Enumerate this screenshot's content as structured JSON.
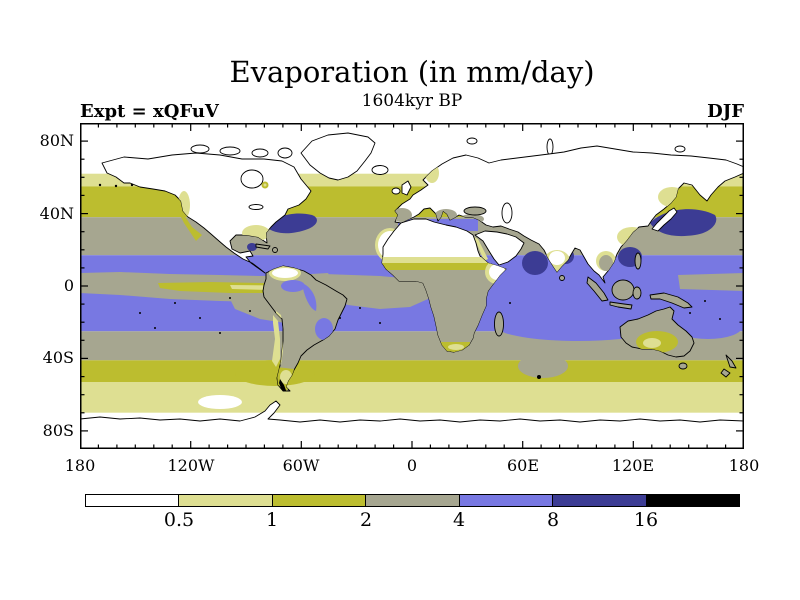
{
  "header": {
    "title": "Evaporation (in mm/day)",
    "subtitle": "1604kyr BP",
    "experiment_label": "Expt = xQFuV",
    "season": "DJF"
  },
  "chart_data": {
    "type": "heatmap",
    "title": "Evaporation (in mm/day)",
    "subtitle": "1604kyr BP",
    "experiment": "xQFuV",
    "season": "DJF",
    "units": "mm/day",
    "projection": "global equirectangular map, filled contours",
    "x_axis": {
      "tick_labels": [
        "180",
        "120W",
        "60W",
        "0",
        "60E",
        "120E",
        "180"
      ],
      "range_deg": [
        -180,
        180
      ],
      "major_tick_deg": 60,
      "minor_tick_deg": 10
    },
    "y_axis": {
      "tick_labels": [
        "80N",
        "40N",
        "0",
        "40S",
        "80S"
      ],
      "range_deg": [
        -90,
        90
      ],
      "major_tick_deg": 40,
      "minor_tick_deg": 10
    },
    "colorbar": {
      "boundary_labels": [
        "0.5",
        "1",
        "2",
        "4",
        "8",
        "16"
      ],
      "bins": [
        "<0.5",
        "0.5-1",
        "1-2",
        "2-4",
        "4-8",
        "8-16",
        ">16"
      ],
      "palette": [
        "#ffffff",
        "#dedf92",
        "#bcbd2f",
        "#a6a690",
        "#7878e2",
        "#3c3c94",
        "#000000"
      ]
    },
    "zonal_bands": [
      {
        "from": 90,
        "to": 62,
        "level": 0
      },
      {
        "from": 62,
        "to": 55,
        "level": 1
      },
      {
        "from": 55,
        "to": 38,
        "level": 2
      },
      {
        "from": 38,
        "to": 17,
        "level": 3
      },
      {
        "from": 17,
        "to": -25,
        "level": 4
      },
      {
        "from": -25,
        "to": -41,
        "level": 3
      },
      {
        "from": -41,
        "to": -53,
        "level": 2
      },
      {
        "from": -53,
        "to": -70,
        "level": 1
      },
      {
        "from": -70,
        "to": -90,
        "level": 0
      }
    ],
    "features": [
      {
        "region": "Gulf Stream, NW Atlantic",
        "bin": "8-16"
      },
      {
        "region": "Kuroshio extension, NW Pacific",
        "bin": "8-16"
      },
      {
        "region": "Arabian Sea",
        "bin": "8-16"
      },
      {
        "region": "Bay of Bengal",
        "bin": "8-16"
      },
      {
        "region": "South China Sea / Philippine Sea",
        "bin": "8-16"
      },
      {
        "region": "Tropical oceans",
        "bin": "4-8"
      },
      {
        "region": "Equatorial East Pacific cold tongue",
        "bin": "0.5-2"
      },
      {
        "region": "Mid-latitude oceans",
        "bin": "2-4"
      },
      {
        "region": "Continental interiors, Sahara, Arabia, poles",
        "bin": "<0.5"
      },
      {
        "region": "Amazon basin patches",
        "bin": "4-8"
      },
      {
        "region": "Southern Africa, Australia interior, South America",
        "bin": "2-4"
      }
    ]
  }
}
